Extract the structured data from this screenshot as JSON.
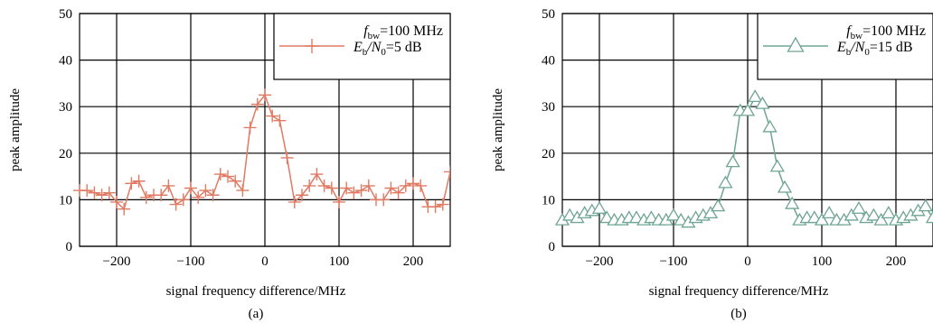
{
  "chart_data": [
    {
      "type": "line",
      "panel_label": "(a)",
      "xlabel": "signal frequency difference/MHz",
      "ylabel": "peak amplitude",
      "xlim": [
        -250,
        250
      ],
      "ylim": [
        0,
        50
      ],
      "xticks": [
        -200,
        -100,
        0,
        100,
        200
      ],
      "yticks": [
        0,
        10,
        20,
        30,
        40,
        50
      ],
      "xtick_labels": [
        "−200",
        "−100",
        "0",
        "100",
        "200"
      ],
      "ytick_labels": [
        "0",
        "10",
        "20",
        "30",
        "40",
        "50"
      ],
      "grid": true,
      "legend_position": "top-right",
      "legend_line1": "f_bw=100 MHz",
      "series": [
        {
          "name": "E_b/N_0=5 dB",
          "label_main": "E",
          "label_sub1": "b",
          "label_mid": "/N",
          "label_sub2": "0",
          "label_tail": "=5 dB",
          "color": "#e07a63",
          "marker": "plus",
          "x": [
            -250,
            -240,
            -230,
            -220,
            -210,
            -200,
            -190,
            -180,
            -170,
            -160,
            -150,
            -140,
            -130,
            -120,
            -110,
            -100,
            -90,
            -80,
            -70,
            -60,
            -50,
            -40,
            -30,
            -20,
            -10,
            0,
            10,
            20,
            30,
            40,
            50,
            60,
            70,
            80,
            90,
            100,
            110,
            120,
            130,
            140,
            150,
            160,
            170,
            180,
            190,
            200,
            210,
            220,
            230,
            240,
            250
          ],
          "y": [
            12,
            12,
            11.5,
            11,
            11.5,
            9.5,
            8,
            13.5,
            14,
            10.5,
            11,
            11,
            13,
            9,
            10,
            12.5,
            10.5,
            12,
            11,
            15.5,
            15,
            14,
            12,
            25.5,
            30.5,
            32.5,
            28,
            27,
            19,
            9.5,
            11,
            13,
            15.5,
            13,
            12.5,
            9.5,
            12.5,
            11.5,
            12,
            13,
            10,
            10,
            12.5,
            11.5,
            13,
            13.5,
            13,
            8.5,
            8.5,
            9,
            16
          ]
        }
      ]
    },
    {
      "type": "line",
      "panel_label": "(b)",
      "xlabel": "signal frequency difference/MHz",
      "ylabel": "peak amplitude",
      "xlim": [
        -250,
        250
      ],
      "ylim": [
        0,
        50
      ],
      "xticks": [
        -200,
        -100,
        0,
        100,
        200
      ],
      "yticks": [
        0,
        10,
        20,
        30,
        40,
        50
      ],
      "xtick_labels": [
        "−200",
        "−100",
        "0",
        "100",
        "200"
      ],
      "ytick_labels": [
        "0",
        "10",
        "20",
        "30",
        "40",
        "50"
      ],
      "grid": true,
      "legend_position": "top-right",
      "legend_line1": "f_bw=100 MHz",
      "series": [
        {
          "name": "E_b/N_0=15 dB",
          "label_main": "E",
          "label_sub1": "b",
          "label_mid": "/N",
          "label_sub2": "0",
          "label_tail": "=15 dB",
          "color": "#6fa591",
          "marker": "triangle",
          "x": [
            -250,
            -240,
            -230,
            -220,
            -210,
            -200,
            -190,
            -180,
            -170,
            -160,
            -150,
            -140,
            -130,
            -120,
            -110,
            -100,
            -90,
            -80,
            -70,
            -60,
            -50,
            -40,
            -30,
            -20,
            -10,
            0,
            10,
            20,
            30,
            40,
            50,
            60,
            70,
            80,
            90,
            100,
            110,
            120,
            130,
            140,
            150,
            160,
            170,
            180,
            190,
            200,
            210,
            220,
            230,
            240,
            250
          ],
          "y": [
            5.5,
            6.5,
            6,
            7,
            7.5,
            8,
            6,
            5.5,
            5.5,
            6,
            6,
            5.5,
            6,
            5.5,
            5.5,
            6.5,
            5.5,
            5,
            6,
            6.5,
            7,
            8.5,
            13.5,
            18,
            29,
            29,
            32,
            30.5,
            25.5,
            17,
            12.5,
            9,
            5.5,
            6,
            6,
            5.5,
            7,
            5.5,
            5.5,
            6.5,
            8,
            6,
            6.5,
            5.5,
            7,
            5.5,
            6,
            6.5,
            7.5,
            8.5,
            6
          ]
        }
      ]
    }
  ]
}
